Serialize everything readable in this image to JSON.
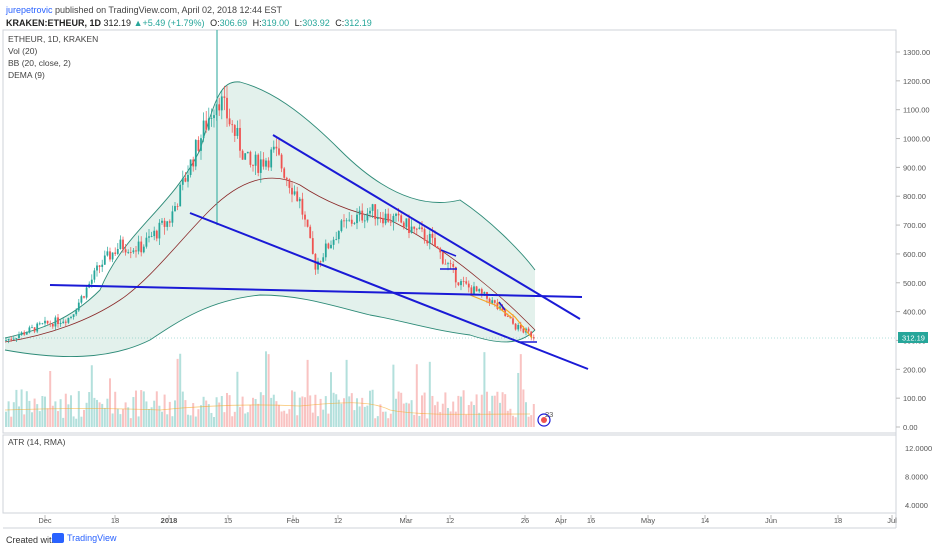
{
  "header": {
    "username": "jurepetrovic",
    "published_text": " published on TradingView.com, April 02, 2018 12:44 EST",
    "symbol": "KRAKEN:ETHEUR, 1D",
    "last": "312.19",
    "change_arrow": "▲",
    "change": "+5.49 (+1.79%)",
    "open_label": "O:",
    "open": "306.69",
    "high_label": "H:",
    "high": "319.00",
    "low_label": "L:",
    "low": "303.92",
    "close_label": "C:",
    "close": "312.19"
  },
  "indicators": {
    "symbol": "ETHEUR, 1D, KRAKEN",
    "vol": "Vol (20)",
    "bb": "BB (20, close, 2)",
    "dema": "DEMA (9)",
    "atr": "ATR (14, RMA)"
  },
  "axis": {
    "price_ticks": [
      "1300.00",
      "1200.00",
      "1100.00",
      "1000.00",
      "900.00",
      "800.00",
      "700.00",
      "600.00",
      "500.00",
      "400.00",
      "300.00",
      "200.00",
      "100.00",
      "0.00"
    ],
    "price_label": "312.19",
    "atr_ticks": [
      "12.0000",
      "8.0000",
      "4.0000"
    ],
    "date_ticks": [
      "Dec",
      "18",
      "2018",
      "15",
      "Feb",
      "12",
      "Mar",
      "12",
      "26",
      "Apr",
      "16",
      "May",
      "14",
      "Jun",
      "18",
      "Jul"
    ]
  },
  "badge": "23",
  "colors": {
    "up": "#26a69a",
    "down": "#ef5350",
    "trendline": "#1a1ad6",
    "bb": "#2e8b78",
    "band_fill": "#e3f1ec",
    "ma": "#8b2a2a",
    "dema": "#f5a623",
    "price_label": "#26a69a"
  },
  "chart_data": {
    "type": "candlestick",
    "title": "KRAKEN:ETHEUR, 1D",
    "y_range": [
      0,
      1350
    ],
    "x_range": [
      "2017-11-22",
      "2018-07-03"
    ],
    "close_series": {
      "x": [
        "2017-11-22",
        "2017-11-29",
        "2017-12-06",
        "2017-12-13",
        "2017-12-20",
        "2017-12-27",
        "2018-01-03",
        "2018-01-10",
        "2018-01-14",
        "2018-01-20",
        "2018-01-27",
        "2018-02-03",
        "2018-02-06",
        "2018-02-13",
        "2018-02-20",
        "2018-02-27",
        "2018-03-06",
        "2018-03-13",
        "2018-03-20",
        "2018-03-27",
        "2018-04-02"
      ],
      "values": [
        300,
        350,
        380,
        560,
        630,
        620,
        720,
        1000,
        1150,
        900,
        950,
        780,
        560,
        690,
        750,
        710,
        650,
        500,
        440,
        350,
        312.19
      ]
    },
    "trendlines": [
      {
        "from": {
          "x": "2018-01-28",
          "y": 1010
        },
        "to": {
          "x": "2018-04-15",
          "y": 370
        }
      },
      {
        "from": {
          "x": "2018-01-06",
          "y": 745
        },
        "to": {
          "x": "2018-04-17",
          "y": 205
        }
      },
      {
        "from": {
          "x": "2017-11-29",
          "y": 490
        },
        "to": {
          "x": "2018-04-14",
          "y": 455
        }
      }
    ],
    "last_price": 312.19,
    "atr_y_range": [
      0,
      14
    ]
  }
}
